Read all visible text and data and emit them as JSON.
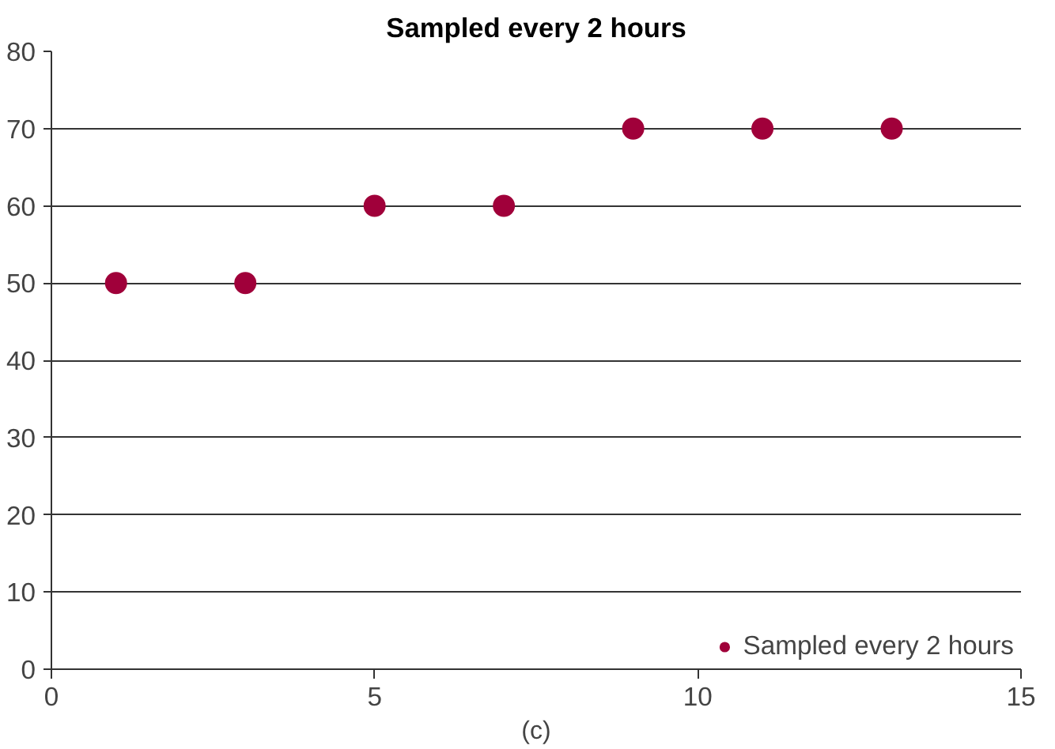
{
  "chart_data": {
    "type": "scatter",
    "title": "Sampled every 2 hours",
    "xlabel": "(c)",
    "x": [
      1,
      3,
      5,
      7,
      9,
      11,
      13
    ],
    "series": [
      {
        "name": "Sampled every 2 hours",
        "color": "#a0003a",
        "values": [
          50,
          50,
          60,
          60,
          70,
          70,
          70
        ]
      }
    ],
    "xlim": [
      0,
      15
    ],
    "xticks": [
      0,
      5,
      10,
      15
    ],
    "ylim": [
      0,
      80
    ],
    "yticks": [
      0,
      10,
      20,
      30,
      40,
      50,
      60,
      70,
      80
    ],
    "grid": "y",
    "legend": "bottom right",
    "marker": "circle"
  }
}
